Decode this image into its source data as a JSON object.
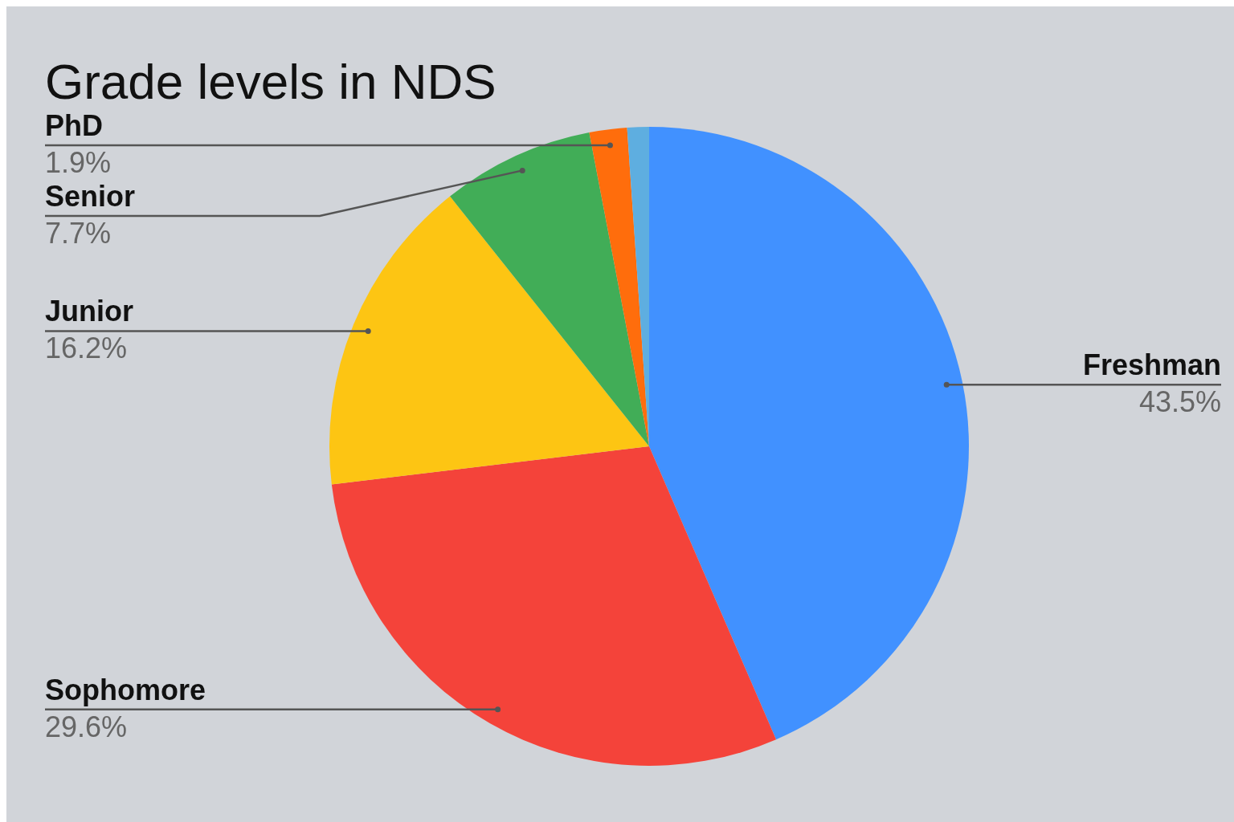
{
  "chart_data": {
    "type": "pie",
    "title": "Grade levels in NDS",
    "categories": [
      "Freshman",
      "Sophomore",
      "Junior",
      "Senior",
      "PhD",
      null
    ],
    "values": [
      43.5,
      29.6,
      16.2,
      7.7,
      1.9,
      1.1
    ],
    "colors": [
      "#4191ff",
      "#f4433a",
      "#fdc513",
      "#41ad57",
      "#ff6d0c",
      "#5eaee0"
    ],
    "value_labels": [
      "43.5%",
      "29.6%",
      "16.2%",
      "7.7%",
      "1.9%",
      null
    ],
    "legend": false
  }
}
